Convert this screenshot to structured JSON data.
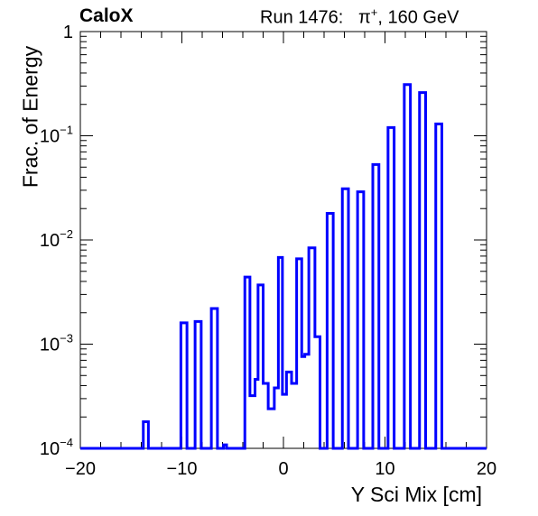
{
  "brand": "CaloX",
  "run_info": {
    "prefix": "Run 1476:",
    "particle_base": "π",
    "particle_charge": "+",
    "energy": ", 160 GeV"
  },
  "colors": {
    "series": "#0000ff",
    "axes": "#000000"
  },
  "chart_data": {
    "type": "line",
    "drawstyle": "steps",
    "xlabel": "Y Sci Mix [cm]",
    "ylabel": "Frac. of Energy",
    "xlim": [
      -20,
      20
    ],
    "ylim": [
      0.0001,
      1
    ],
    "yscale": "log",
    "grid": false,
    "xticks": [
      "−20",
      "−10",
      "0",
      "10",
      "20"
    ],
    "xtick_values": [
      -20,
      -10,
      0,
      10,
      20
    ],
    "yticks": [
      {
        "value": 1,
        "base": "1",
        "exp": ""
      },
      {
        "value": 0.1,
        "base": "10",
        "exp": "−1"
      },
      {
        "value": 0.01,
        "base": "10",
        "exp": "−2"
      },
      {
        "value": 0.001,
        "base": "10",
        "exp": "−3"
      },
      {
        "value": 0.0001,
        "base": "10",
        "exp": "−4"
      }
    ],
    "bins": [
      {
        "x0": -13.8,
        "x1": -13.3,
        "y": 0.00018
      },
      {
        "x0": -10.1,
        "x1": -9.5,
        "y": 0.0016
      },
      {
        "x0": -8.7,
        "x1": -8.1,
        "y": 0.00165
      },
      {
        "x0": -7.1,
        "x1": -6.5,
        "y": 0.0022
      },
      {
        "x0": -5.9,
        "x1": -5.6,
        "y": 0.000108
      },
      {
        "x0": -3.8,
        "x1": -3.3,
        "y": 0.0044
      },
      {
        "x0": -3.3,
        "x1": -2.8,
        "y": 0.00032
      },
      {
        "x0": -2.8,
        "x1": -2.5,
        "y": 0.00046
      },
      {
        "x0": -2.5,
        "x1": -2.0,
        "y": 0.0037
      },
      {
        "x0": -2.0,
        "x1": -1.5,
        "y": 0.00042
      },
      {
        "x0": -1.5,
        "x1": -0.9,
        "y": 0.00024
      },
      {
        "x0": -0.9,
        "x1": -0.5,
        "y": 0.00038
      },
      {
        "x0": -0.5,
        "x1": -0.1,
        "y": 0.0068
      },
      {
        "x0": -0.1,
        "x1": 0.3,
        "y": 0.00033
      },
      {
        "x0": 0.3,
        "x1": 0.8,
        "y": 0.00054
      },
      {
        "x0": 0.8,
        "x1": 1.3,
        "y": 0.00042
      },
      {
        "x0": 1.3,
        "x1": 1.8,
        "y": 0.0066
      },
      {
        "x0": 1.8,
        "x1": 2.1,
        "y": 0.00076
      },
      {
        "x0": 2.1,
        "x1": 2.5,
        "y": 0.0008
      },
      {
        "x0": 2.5,
        "x1": 3.1,
        "y": 0.0084
      },
      {
        "x0": 3.1,
        "x1": 3.6,
        "y": 0.00118
      },
      {
        "x0": 4.3,
        "x1": 4.9,
        "y": 0.018
      },
      {
        "x0": 5.8,
        "x1": 6.4,
        "y": 0.031
      },
      {
        "x0": 7.3,
        "x1": 7.9,
        "y": 0.029
      },
      {
        "x0": 8.8,
        "x1": 9.4,
        "y": 0.053
      },
      {
        "x0": 10.3,
        "x1": 10.9,
        "y": 0.12
      },
      {
        "x0": 11.9,
        "x1": 12.5,
        "y": 0.31
      },
      {
        "x0": 13.4,
        "x1": 14.0,
        "y": 0.26
      },
      {
        "x0": 15.0,
        "x1": 15.6,
        "y": 0.13
      }
    ]
  }
}
